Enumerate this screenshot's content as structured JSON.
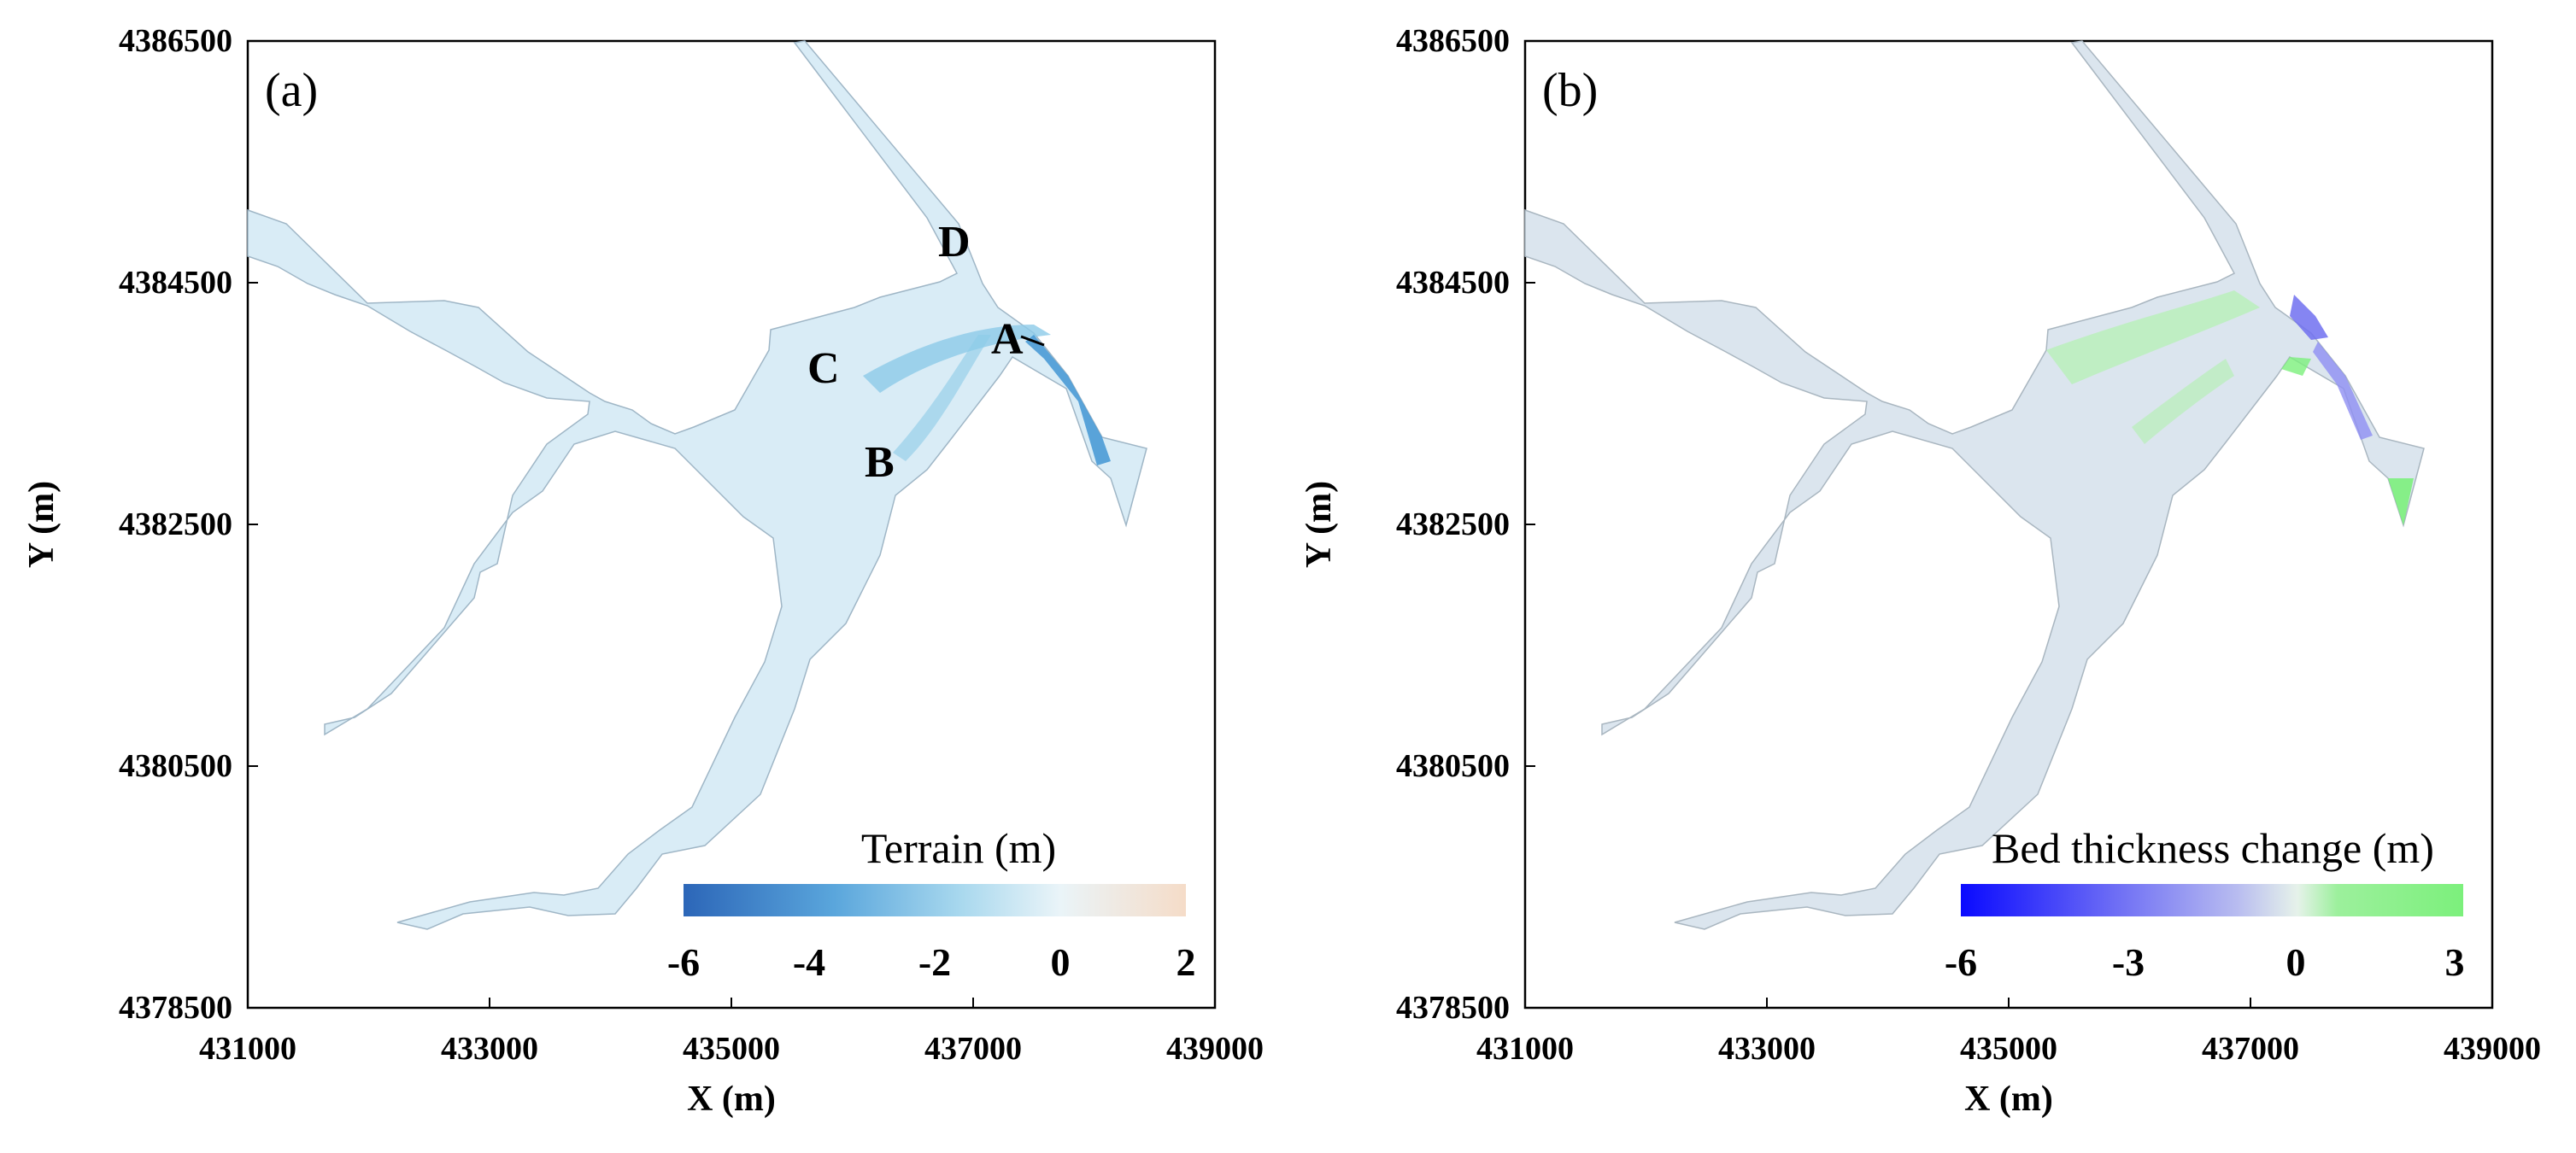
{
  "chart_data": [
    {
      "type": "heatmap",
      "panel_label": "(a)",
      "xlabel": "X (m)",
      "ylabel": "Y (m)",
      "xlim": [
        431000,
        439000
      ],
      "ylim": [
        4378500,
        4386500
      ],
      "xticks": [
        "431000",
        "433000",
        "435000",
        "437000",
        "439000"
      ],
      "yticks": [
        "4378500",
        "4380500",
        "4382500",
        "4384500",
        "4386500"
      ],
      "grid": false,
      "annotations": [
        {
          "text": "A",
          "x": 437300,
          "y": 4383980
        },
        {
          "text": "B",
          "x": 436150,
          "y": 4382970
        },
        {
          "text": "C",
          "x": 435580,
          "y": 4383550
        },
        {
          "text": "D",
          "x": 436900,
          "y": 4384820
        }
      ],
      "colorbar": {
        "title": "Terrain (m)",
        "ticks": [
          "-6",
          "-4",
          "-2",
          "0",
          "2"
        ],
        "range": [
          -6,
          2
        ],
        "colors": [
          "#2c66b8",
          "#5aa6dc",
          "#a8d8ee",
          "#eaf4f8",
          "#f5dcc8"
        ],
        "placement": "bottom-right"
      }
    },
    {
      "type": "heatmap",
      "panel_label": "(b)",
      "xlabel": "X (m)",
      "ylabel": "Y (m)",
      "xlim": [
        431000,
        439000
      ],
      "ylim": [
        4378500,
        4386500
      ],
      "xticks": [
        "431000",
        "433000",
        "435000",
        "437000",
        "439000"
      ],
      "yticks": [
        "4378500",
        "4380500",
        "4382500",
        "4384500",
        "4386500"
      ],
      "grid": false,
      "colorbar": {
        "title": "Bed thickness change (m)",
        "ticks": [
          "-6",
          "-3",
          "0",
          "3"
        ],
        "range": [
          -6,
          3
        ],
        "colors": [
          "#0a0aff",
          "#6b6bf5",
          "#b8bcf0",
          "#e6f2ea",
          "#9cf09c",
          "#7cf07c"
        ],
        "placement": "bottom-right"
      }
    }
  ]
}
